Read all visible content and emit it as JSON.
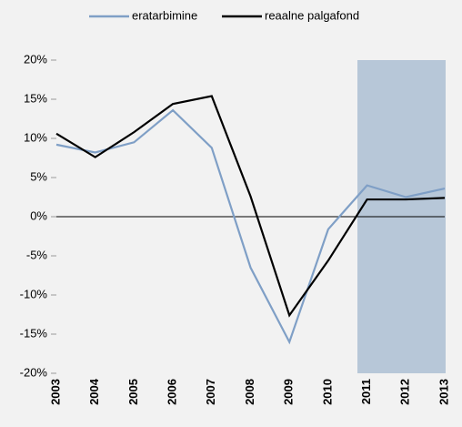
{
  "chart_data": {
    "type": "line",
    "categories": [
      "2003",
      "2004",
      "2005",
      "2006",
      "2007",
      "2008",
      "2009",
      "2010",
      "2011",
      "2012",
      "2013"
    ],
    "series": [
      {
        "name": "eratarbimine",
        "color": "#7f9fc6",
        "values": [
          9.2,
          8.2,
          9.5,
          13.6,
          8.8,
          -6.5,
          -16,
          -1.6,
          4.0,
          2.5,
          3.6
        ]
      },
      {
        "name": "reaalne palgafond",
        "color": "#000000",
        "values": [
          10.6,
          7.6,
          10.8,
          14.4,
          15.4,
          2.6,
          -12.6,
          -5.6,
          2.2,
          2.2,
          2.4
        ]
      }
    ],
    "ylim": [
      -20,
      20
    ],
    "yticks": [
      {
        "value": -20,
        "label": "-20%"
      },
      {
        "value": -15,
        "label": "-15%"
      },
      {
        "value": -10,
        "label": "-10%"
      },
      {
        "value": -5,
        "label": "-5%"
      },
      {
        "value": 0,
        "label": "0%"
      },
      {
        "value": 5,
        "label": "5%"
      },
      {
        "value": 10,
        "label": "10%"
      },
      {
        "value": 15,
        "label": "15%"
      },
      {
        "value": 20,
        "label": "20%"
      }
    ],
    "legend": "top"
  }
}
